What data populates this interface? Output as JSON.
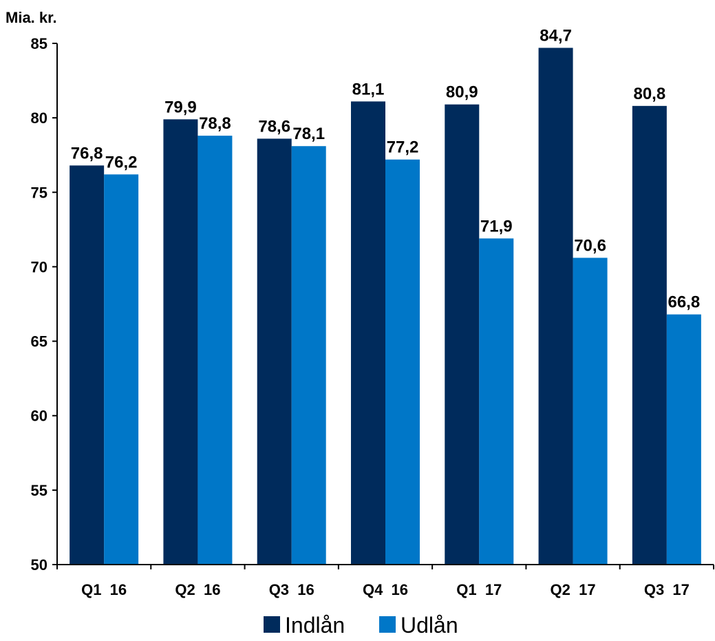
{
  "chart_data": {
    "type": "bar",
    "ylabel": "Mia. kr.",
    "categories": [
      "Q1  16",
      "Q2  16",
      "Q3  16",
      "Q4  16",
      "Q1  17",
      "Q2  17",
      "Q3  17"
    ],
    "series": [
      {
        "name": "Indlån",
        "color": "#002b5c",
        "values": [
          76.8,
          79.9,
          78.6,
          81.1,
          80.9,
          84.7,
          80.8
        ],
        "labels": [
          "76,8",
          "79,9",
          "78,6",
          "81,1",
          "80,9",
          "84,7",
          "80,8"
        ]
      },
      {
        "name": "Udlån",
        "color": "#0077c8",
        "values": [
          76.2,
          78.8,
          78.1,
          77.2,
          71.9,
          70.6,
          66.8
        ],
        "labels": [
          "76,2",
          "78,8",
          "78,1",
          "77,2",
          "71,9",
          "70,6",
          "66,8"
        ]
      }
    ],
    "yticks": [
      "50",
      "55",
      "60",
      "65",
      "70",
      "75",
      "80",
      "85"
    ],
    "ylim": [
      50,
      85
    ],
    "grid": false,
    "legend_position": "bottom"
  }
}
